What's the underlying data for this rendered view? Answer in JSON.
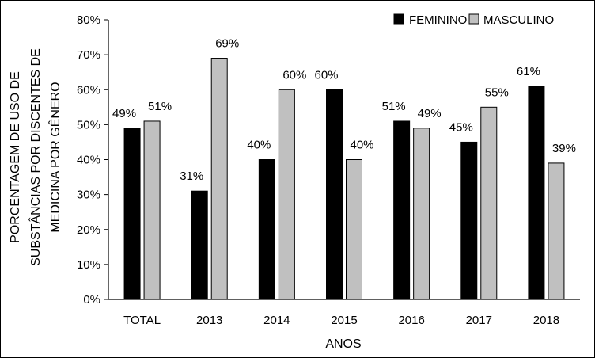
{
  "chart_data": {
    "type": "bar",
    "categories": [
      "TOTAL",
      "2013",
      "2014",
      "2015",
      "2016",
      "2017",
      "2018"
    ],
    "series": [
      {
        "name": "FEMININO",
        "color": "#000000",
        "values": [
          49,
          31,
          40,
          60,
          51,
          45,
          61
        ],
        "labels": [
          "49%",
          "31%",
          "40%",
          "60%",
          "51%",
          "45%",
          "61%"
        ]
      },
      {
        "name": "MASCULINO",
        "color": "#c0c0c0",
        "values": [
          51,
          69,
          60,
          40,
          49,
          55,
          39
        ],
        "labels": [
          "51%",
          "69%",
          "60%",
          "40%",
          "49%",
          "55%",
          "39%"
        ]
      }
    ],
    "xlabel": "ANOS",
    "ylabel_lines": [
      "PORCENTAGEM DE USO DE",
      "SUBSTÂNCIAS POR DISCENTES DE",
      "MEDICINA POR GÊNERO"
    ],
    "ylim": [
      0,
      80
    ],
    "yticks": [
      0,
      10,
      20,
      30,
      40,
      50,
      60,
      70,
      80
    ],
    "ytick_labels": [
      "0%",
      "10%",
      "20%",
      "30%",
      "40%",
      "50%",
      "60%",
      "70%",
      "80%"
    ],
    "grid": false,
    "legend_position": "top-right"
  }
}
